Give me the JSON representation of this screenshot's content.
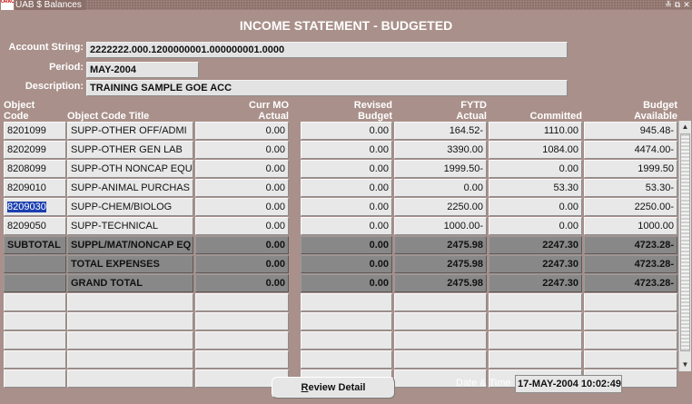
{
  "window": {
    "title": "UAB $ Balances",
    "icon_text": "ORACLE",
    "controls": [
      "≚",
      "⧉",
      "✕"
    ]
  },
  "heading": "INCOME STATEMENT - BUDGETED",
  "header_fields": {
    "account_string_label": "Account String:",
    "account_string": "2222222.000.1200000001.000000001.0000",
    "period_label": "Period:",
    "period": "MAY-2004",
    "description_label": "Description:",
    "description": "TRAINING SAMPLE GOE ACC"
  },
  "columns": {
    "object_code": [
      "Object",
      "Code"
    ],
    "object_code_title": "Object Code Title",
    "curr_mo_actual": [
      "Curr MO",
      "Actual"
    ],
    "revised_budget": [
      "Revised",
      "Budget"
    ],
    "fytd_actual": [
      "FYTD",
      "Actual"
    ],
    "committed": "Committed",
    "budget_available": [
      "Budget",
      "Available"
    ]
  },
  "rows": [
    {
      "code": "8201099",
      "title": "SUPP-OTHER OFF/ADMI",
      "curr": "0.00",
      "revised": "0.00",
      "fytd": "164.52-",
      "committed": "1110.00",
      "available": "945.48-"
    },
    {
      "code": "8202099",
      "title": "SUPP-OTHER GEN LAB",
      "curr": "0.00",
      "revised": "0.00",
      "fytd": "3390.00",
      "committed": "1084.00",
      "available": "4474.00-"
    },
    {
      "code": "8208099",
      "title": "SUPP-OTH NONCAP EQU",
      "curr": "0.00",
      "revised": "0.00",
      "fytd": "1999.50-",
      "committed": "0.00",
      "available": "1999.50"
    },
    {
      "code": "8209010",
      "title": "SUPP-ANIMAL PURCHAS",
      "curr": "0.00",
      "revised": "0.00",
      "fytd": "0.00",
      "committed": "53.30",
      "available": "53.30-"
    },
    {
      "code": "8209030",
      "title": "SUPP-CHEM/BIOLOG",
      "curr": "0.00",
      "revised": "0.00",
      "fytd": "2250.00",
      "committed": "0.00",
      "available": "2250.00-"
    },
    {
      "code": "8209050",
      "title": "SUPP-TECHNICAL",
      "curr": "0.00",
      "revised": "0.00",
      "fytd": "1000.00-",
      "committed": "0.00",
      "available": "1000.00"
    }
  ],
  "total_rows": [
    {
      "code": "SUBTOTAL",
      "title": "SUPPL/MAT/NONCAP EQ",
      "curr": "0.00",
      "revised": "0.00",
      "fytd": "2475.98",
      "committed": "2247.30",
      "available": "4723.28-"
    },
    {
      "code": "",
      "title": "TOTAL EXPENSES",
      "curr": "0.00",
      "revised": "0.00",
      "fytd": "2475.98",
      "committed": "2247.30",
      "available": "4723.28-"
    },
    {
      "code": "",
      "title": "GRAND TOTAL",
      "curr": "0.00",
      "revised": "0.00",
      "fytd": "2475.98",
      "committed": "2247.30",
      "available": "4723.28-"
    }
  ],
  "selected_row": 4,
  "footer": {
    "review_detail_u": "R",
    "review_detail_rest": "eview Detail",
    "datetime_label": "Date & Time",
    "datetime_value": "17-MAY-2004 10:02:49"
  }
}
